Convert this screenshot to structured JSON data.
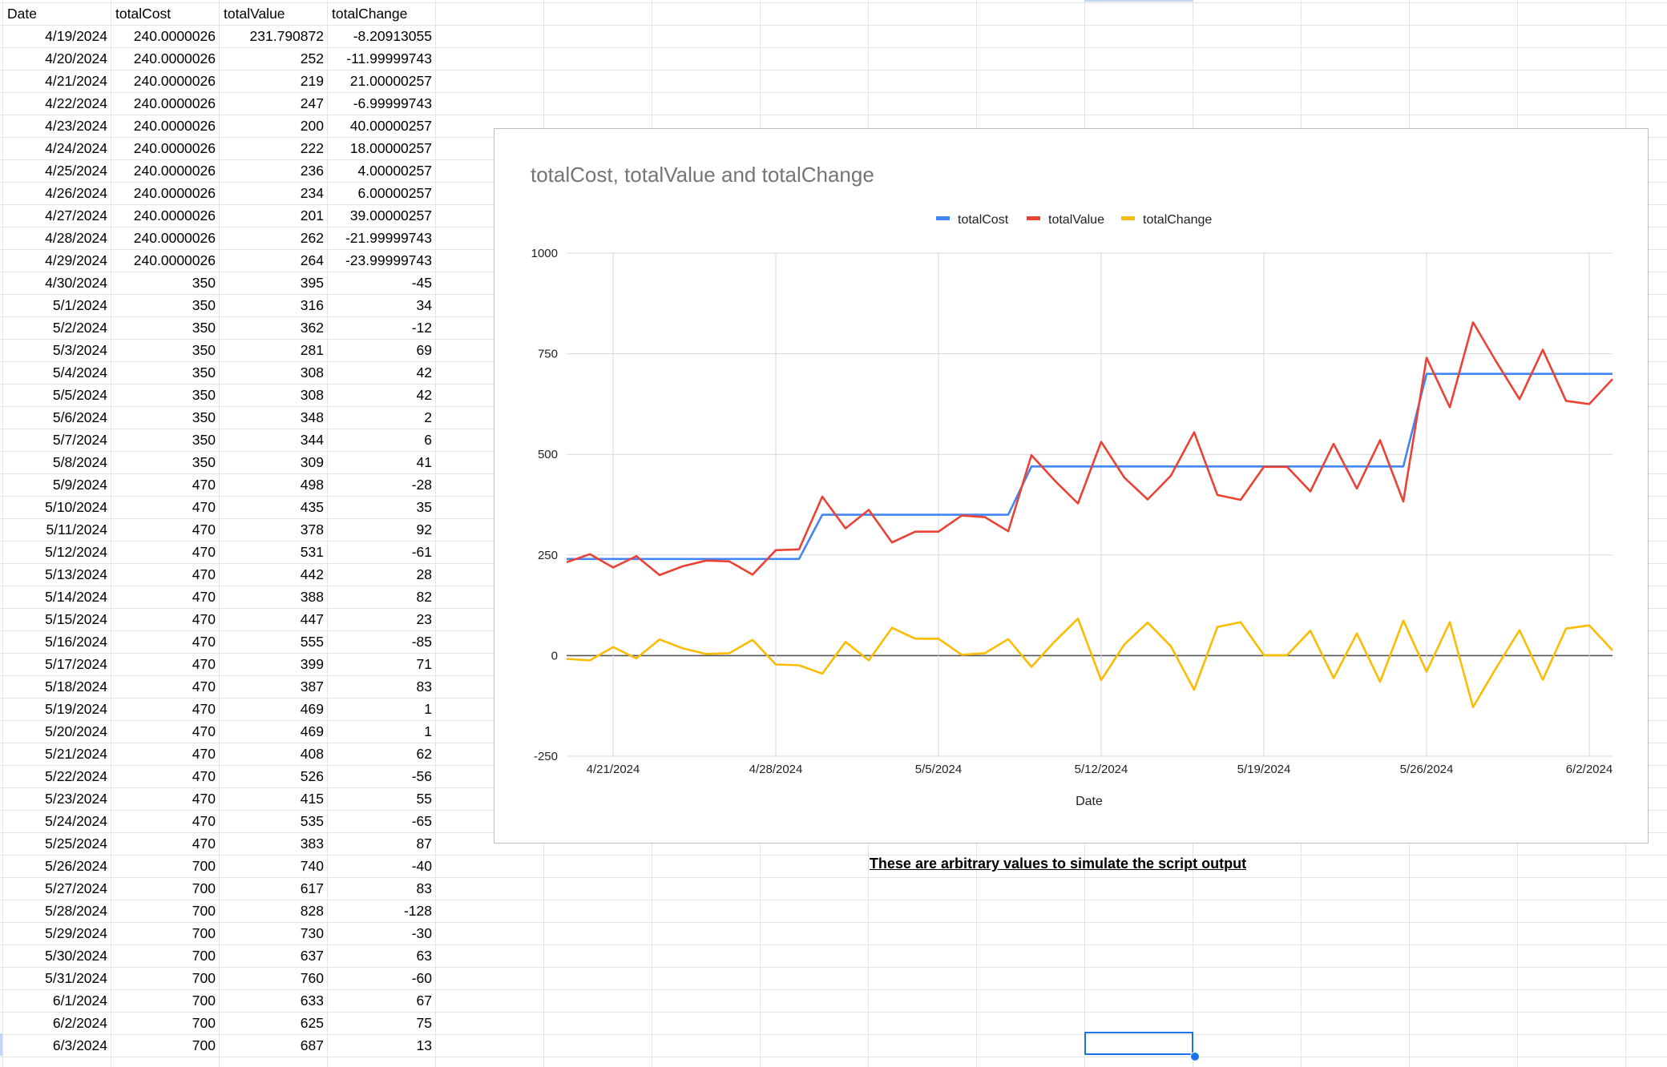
{
  "sheet": {
    "headers": [
      "Date",
      "totalCost",
      "totalValue",
      "totalChange"
    ],
    "rows": [
      [
        "4/19/2024",
        "240.0000026",
        "231.790872",
        "-8.20913055"
      ],
      [
        "4/20/2024",
        "240.0000026",
        "252",
        "-11.99999743"
      ],
      [
        "4/21/2024",
        "240.0000026",
        "219",
        "21.00000257"
      ],
      [
        "4/22/2024",
        "240.0000026",
        "247",
        "-6.99999743"
      ],
      [
        "4/23/2024",
        "240.0000026",
        "200",
        "40.00000257"
      ],
      [
        "4/24/2024",
        "240.0000026",
        "222",
        "18.00000257"
      ],
      [
        "4/25/2024",
        "240.0000026",
        "236",
        "4.00000257"
      ],
      [
        "4/26/2024",
        "240.0000026",
        "234",
        "6.00000257"
      ],
      [
        "4/27/2024",
        "240.0000026",
        "201",
        "39.00000257"
      ],
      [
        "4/28/2024",
        "240.0000026",
        "262",
        "-21.99999743"
      ],
      [
        "4/29/2024",
        "240.0000026",
        "264",
        "-23.99999743"
      ],
      [
        "4/30/2024",
        "350",
        "395",
        "-45"
      ],
      [
        "5/1/2024",
        "350",
        "316",
        "34"
      ],
      [
        "5/2/2024",
        "350",
        "362",
        "-12"
      ],
      [
        "5/3/2024",
        "350",
        "281",
        "69"
      ],
      [
        "5/4/2024",
        "350",
        "308",
        "42"
      ],
      [
        "5/5/2024",
        "350",
        "308",
        "42"
      ],
      [
        "5/6/2024",
        "350",
        "348",
        "2"
      ],
      [
        "5/7/2024",
        "350",
        "344",
        "6"
      ],
      [
        "5/8/2024",
        "350",
        "309",
        "41"
      ],
      [
        "5/9/2024",
        "470",
        "498",
        "-28"
      ],
      [
        "5/10/2024",
        "470",
        "435",
        "35"
      ],
      [
        "5/11/2024",
        "470",
        "378",
        "92"
      ],
      [
        "5/12/2024",
        "470",
        "531",
        "-61"
      ],
      [
        "5/13/2024",
        "470",
        "442",
        "28"
      ],
      [
        "5/14/2024",
        "470",
        "388",
        "82"
      ],
      [
        "5/15/2024",
        "470",
        "447",
        "23"
      ],
      [
        "5/16/2024",
        "470",
        "555",
        "-85"
      ],
      [
        "5/17/2024",
        "470",
        "399",
        "71"
      ],
      [
        "5/18/2024",
        "470",
        "387",
        "83"
      ],
      [
        "5/19/2024",
        "470",
        "469",
        "1"
      ],
      [
        "5/20/2024",
        "470",
        "469",
        "1"
      ],
      [
        "5/21/2024",
        "470",
        "408",
        "62"
      ],
      [
        "5/22/2024",
        "470",
        "526",
        "-56"
      ],
      [
        "5/23/2024",
        "470",
        "415",
        "55"
      ],
      [
        "5/24/2024",
        "470",
        "535",
        "-65"
      ],
      [
        "5/25/2024",
        "470",
        "383",
        "87"
      ],
      [
        "5/26/2024",
        "700",
        "740",
        "-40"
      ],
      [
        "5/27/2024",
        "700",
        "617",
        "83"
      ],
      [
        "5/28/2024",
        "700",
        "828",
        "-128"
      ],
      [
        "5/29/2024",
        "700",
        "730",
        "-30"
      ],
      [
        "5/30/2024",
        "700",
        "637",
        "63"
      ],
      [
        "5/31/2024",
        "700",
        "760",
        "-60"
      ],
      [
        "6/1/2024",
        "700",
        "633",
        "67"
      ],
      [
        "6/2/2024",
        "700",
        "625",
        "75"
      ],
      [
        "6/3/2024",
        "700",
        "687",
        "13"
      ]
    ]
  },
  "note": "These are arbitrary values to simulate the script output",
  "chart_data": {
    "type": "line",
    "title": "totalCost, totalValue and totalChange",
    "xlabel": "Date",
    "ylabel": "",
    "x_tick_labels": [
      "4/21/2024",
      "4/28/2024",
      "5/5/2024",
      "5/12/2024",
      "5/19/2024",
      "5/26/2024",
      "6/2/2024"
    ],
    "y_ticks": [
      1000,
      750,
      500,
      250,
      0,
      -250
    ],
    "ylim": [
      -250,
      1000
    ],
    "xlim": [
      "4/19/2024",
      "6/3/2024"
    ],
    "grid": true,
    "legend_position": "top",
    "series": [
      {
        "name": "totalCost",
        "color": "#4285f4",
        "values": [
          240,
          240,
          240,
          240,
          240,
          240,
          240,
          240,
          240,
          240,
          240,
          350,
          350,
          350,
          350,
          350,
          350,
          350,
          350,
          350,
          470,
          470,
          470,
          470,
          470,
          470,
          470,
          470,
          470,
          470,
          470,
          470,
          470,
          470,
          470,
          470,
          470,
          700,
          700,
          700,
          700,
          700,
          700,
          700,
          700,
          700
        ]
      },
      {
        "name": "totalValue",
        "color": "#ea4335",
        "values": [
          231.790872,
          252,
          219,
          247,
          200,
          222,
          236,
          234,
          201,
          262,
          264,
          395,
          316,
          362,
          281,
          308,
          308,
          348,
          344,
          309,
          498,
          435,
          378,
          531,
          442,
          388,
          447,
          555,
          399,
          387,
          469,
          469,
          408,
          526,
          415,
          535,
          383,
          740,
          617,
          828,
          730,
          637,
          760,
          633,
          625,
          687
        ]
      },
      {
        "name": "totalChange",
        "color": "#fbbc04",
        "values": [
          -8.20913055,
          -11.99999743,
          21.00000257,
          -6.99999743,
          40.00000257,
          18.00000257,
          4.00000257,
          6.00000257,
          39.00000257,
          -21.99999743,
          -23.99999743,
          -45,
          34,
          -12,
          69,
          42,
          42,
          2,
          6,
          41,
          -28,
          35,
          92,
          -61,
          28,
          82,
          23,
          -85,
          71,
          83,
          1,
          1,
          62,
          -56,
          55,
          -65,
          87,
          -40,
          83,
          -128,
          -30,
          63,
          -60,
          67,
          75,
          13
        ]
      }
    ]
  }
}
